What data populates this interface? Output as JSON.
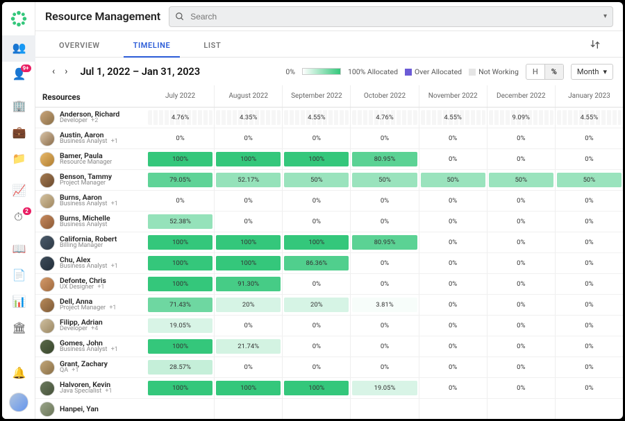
{
  "page_title": "Resource Management",
  "search": {
    "placeholder": "Search"
  },
  "tabs": {
    "overview": "OVERVIEW",
    "timeline": "TIMELINE",
    "list": "LIST",
    "active": "timeline"
  },
  "toolbar": {
    "range": "Jul 1, 2022 – Jan 31, 2023",
    "legend_0": "0%",
    "legend_100": "100% Allocated",
    "legend_over": "Over Allocated",
    "legend_nw": "Not Working",
    "unit_h": "H",
    "unit_pct": "%",
    "period": "Month",
    "over_color": "#6b5bd6",
    "nw_color": "#e5e5e5"
  },
  "resources_label": "Resources",
  "months": [
    "July 2022",
    "August 2022",
    "September 2022",
    "October 2022",
    "November 2022",
    "December 2022",
    "January 2023"
  ],
  "alloc_color_full": "#34c77b",
  "rail_badges": {
    "contacts": "9+",
    "dashboard": "2"
  },
  "rows": [
    {
      "name": "Anderson, Richard",
      "role": "Developer",
      "plus": "+2",
      "avatar": [
        "#c9a57b",
        "#8b6f47"
      ],
      "hatch": true,
      "cells": [
        {
          "v": 4.76
        },
        {
          "v": 4.35
        },
        {
          "v": 4.55
        },
        {
          "v": 4.76
        },
        {
          "v": 4.55
        },
        {
          "v": 9.09
        },
        {
          "v": 4.55
        }
      ]
    },
    {
      "name": "Austin, Aaron",
      "role": "Business Analyst",
      "plus": "+1",
      "avatar": [
        "#d9c4a8",
        "#8a6d4b"
      ],
      "cells": [
        {
          "v": 0
        },
        {
          "v": 0
        },
        {
          "v": 0
        },
        {
          "v": 0
        },
        {
          "v": 0
        },
        {
          "v": 0
        },
        {
          "v": 0
        }
      ]
    },
    {
      "name": "Bamer, Paula",
      "role": "Resource Manager",
      "plus": "",
      "avatar": [
        "#e8b96b",
        "#b07d2f"
      ],
      "cells": [
        {
          "v": 100
        },
        {
          "v": 100
        },
        {
          "v": 100
        },
        {
          "v": 80.95
        },
        {
          "v": 0
        },
        {
          "v": 0
        },
        {
          "v": 0
        }
      ]
    },
    {
      "name": "Benson, Tammy",
      "role": "Project Manager",
      "plus": "",
      "avatar": [
        "#a67c52",
        "#6b4a2e"
      ],
      "cells": [
        {
          "v": 79.05
        },
        {
          "v": 52.17
        },
        {
          "v": 50
        },
        {
          "v": 50
        },
        {
          "v": 50
        },
        {
          "v": 50
        },
        {
          "v": 50
        }
      ]
    },
    {
      "name": "Burns, Aaron",
      "role": "Business Analyst",
      "plus": "+1",
      "avatar": [
        "#d4c2a0",
        "#a08760"
      ],
      "cells": [
        {
          "v": 0
        },
        {
          "v": 0
        },
        {
          "v": 0
        },
        {
          "v": 0
        },
        {
          "v": 0
        },
        {
          "v": 0
        },
        {
          "v": 0
        }
      ]
    },
    {
      "name": "Burns, Michelle",
      "role": "Business Analyst",
      "plus": "",
      "avatar": [
        "#c78a5e",
        "#8d5a36"
      ],
      "cells": [
        {
          "v": 52.38
        },
        {
          "v": 0
        },
        {
          "v": 0
        },
        {
          "v": 0
        },
        {
          "v": 0
        },
        {
          "v": 0
        },
        {
          "v": 0
        }
      ]
    },
    {
      "name": "California, Robert",
      "role": "Billing Manager",
      "plus": "",
      "avatar": [
        "#4a5a6a",
        "#2e3a46"
      ],
      "cells": [
        {
          "v": 100
        },
        {
          "v": 100
        },
        {
          "v": 100
        },
        {
          "v": 80.95
        },
        {
          "v": 0
        },
        {
          "v": 0
        },
        {
          "v": 0
        }
      ]
    },
    {
      "name": "Chu, Alex",
      "role": "Business Analyst",
      "plus": "+1",
      "avatar": [
        "#3e4c5a",
        "#222e3a"
      ],
      "cells": [
        {
          "v": 100
        },
        {
          "v": 100
        },
        {
          "v": 86.36
        },
        {
          "v": 0
        },
        {
          "v": 0
        },
        {
          "v": 0
        },
        {
          "v": 0
        }
      ]
    },
    {
      "name": "Defonte, Chris",
      "role": "UX Designer",
      "plus": "+1",
      "avatar": [
        "#d49a6a",
        "#a06a3e"
      ],
      "cells": [
        {
          "v": 100
        },
        {
          "v": 91.3
        },
        {
          "v": 0
        },
        {
          "v": 0
        },
        {
          "v": 0
        },
        {
          "v": 0
        },
        {
          "v": 0
        }
      ]
    },
    {
      "name": "Dell, Anna",
      "role": "Project Manager",
      "plus": "+1",
      "avatar": [
        "#b88a5a",
        "#7e5a36"
      ],
      "cells": [
        {
          "v": 71.43
        },
        {
          "v": 20.0
        },
        {
          "v": 20.0
        },
        {
          "v": 3.81
        },
        {
          "v": 0
        },
        {
          "v": 0
        },
        {
          "v": 0
        }
      ]
    },
    {
      "name": "Filipp, Adrian",
      "role": "Developer",
      "plus": "+4",
      "avatar": [
        "#cfbfa0",
        "#9a8762"
      ],
      "cells": [
        {
          "v": 19.05
        },
        {
          "v": 0
        },
        {
          "v": 0
        },
        {
          "v": 0
        },
        {
          "v": 0
        },
        {
          "v": 0
        },
        {
          "v": 0
        }
      ]
    },
    {
      "name": "Gomes, John",
      "role": "Business Analyst",
      "plus": "+1",
      "avatar": [
        "#5a6a4a",
        "#38462c"
      ],
      "cells": [
        {
          "v": 100
        },
        {
          "v": 21.74
        },
        {
          "v": 0
        },
        {
          "v": 0
        },
        {
          "v": 0
        },
        {
          "v": 0
        },
        {
          "v": 0
        }
      ]
    },
    {
      "name": "Grant, Zachary",
      "role": "QA",
      "plus": "+1",
      "avatar": [
        "#c2a77a",
        "#8a6f46"
      ],
      "cells": [
        {
          "v": 28.57
        },
        {
          "v": 0
        },
        {
          "v": 0
        },
        {
          "v": 0
        },
        {
          "v": 0
        },
        {
          "v": 0
        },
        {
          "v": 0
        }
      ]
    },
    {
      "name": "Halvoren, Kevin",
      "role": "Java Specialist",
      "plus": "+1",
      "avatar": [
        "#6b7a5e",
        "#46523a"
      ],
      "cells": [
        {
          "v": 100
        },
        {
          "v": 100
        },
        {
          "v": 100
        },
        {
          "v": 19.05
        },
        {
          "v": 0
        },
        {
          "v": 0
        },
        {
          "v": 0
        }
      ]
    },
    {
      "name": "Hanpei, Yan",
      "role": "",
      "plus": "",
      "avatar": [
        "#9aa58a",
        "#6a7558"
      ],
      "cells": [
        {
          "v": null
        },
        {
          "v": null
        },
        {
          "v": null
        },
        {
          "v": null
        },
        {
          "v": null
        },
        {
          "v": null
        },
        {
          "v": null
        }
      ]
    }
  ]
}
